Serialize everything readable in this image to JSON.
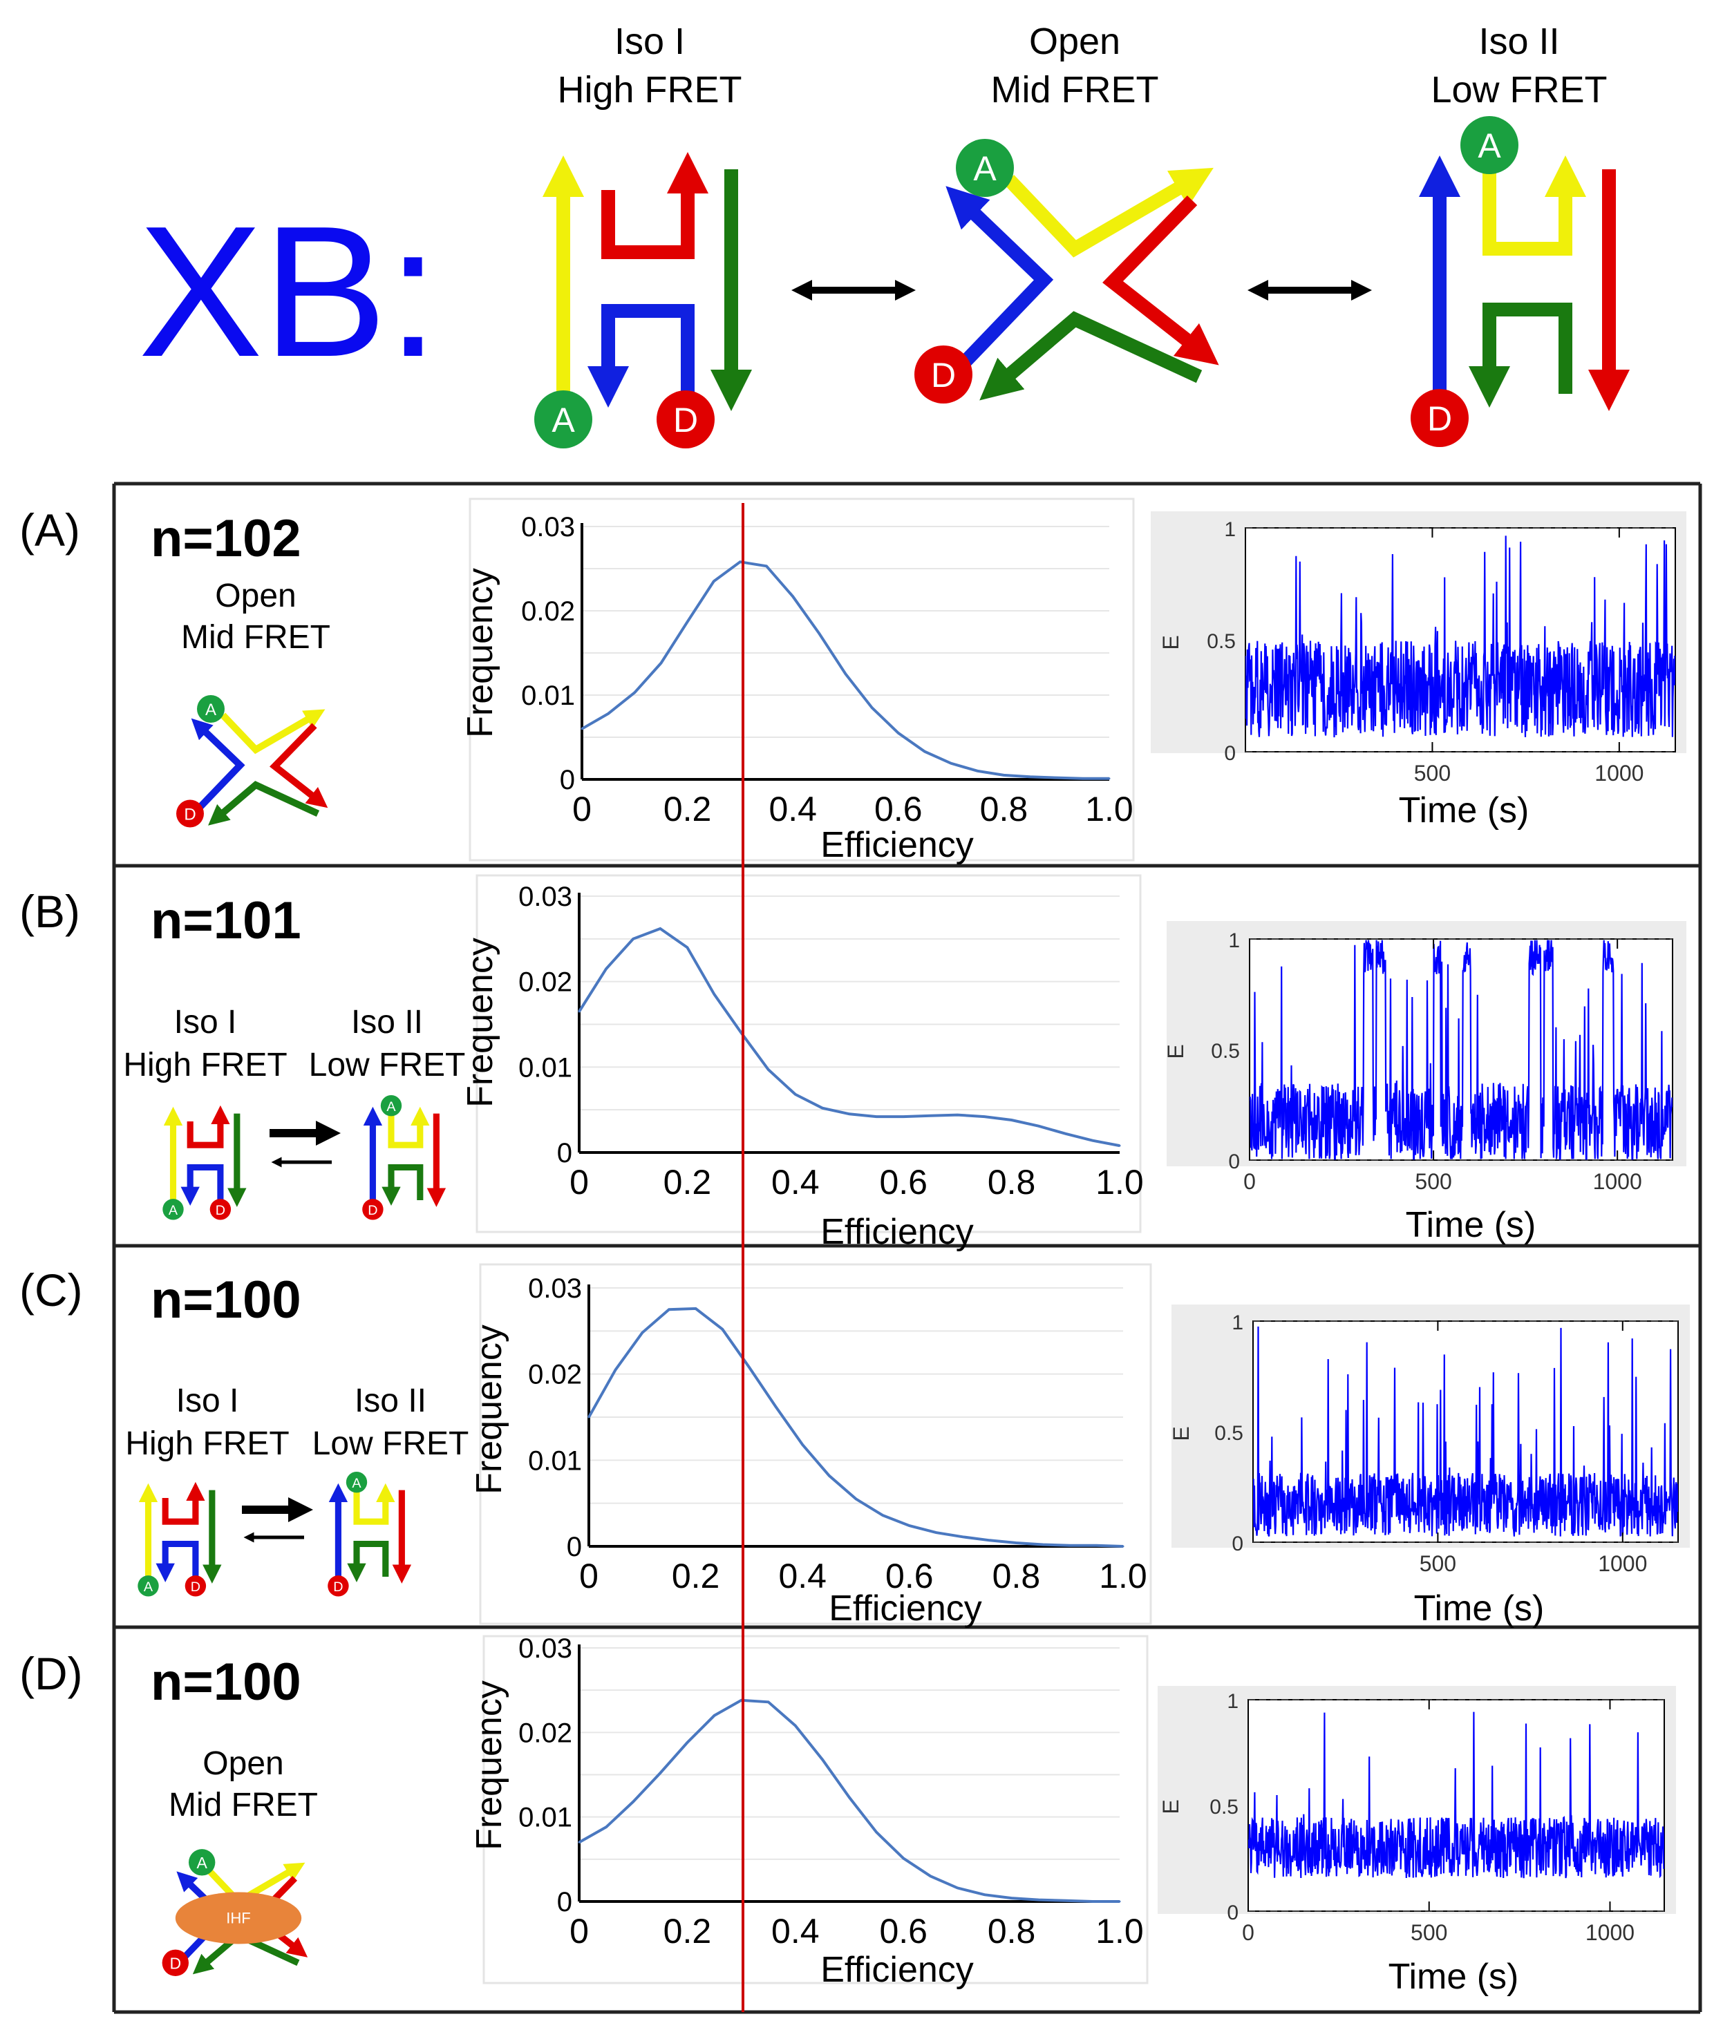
{
  "top": {
    "label": "XB:",
    "states": [
      {
        "line1": "Iso I",
        "line2": "High FRET"
      },
      {
        "line1": "Open",
        "line2": "Mid FRET"
      },
      {
        "line1": "Iso II",
        "line2": "Low FRET"
      }
    ],
    "acceptor": "A",
    "donor": "D"
  },
  "colors": {
    "xb_label": "#0a0af0",
    "strand_yellow": "#f0f00a",
    "strand_red": "#e00000",
    "strand_blue": "#1020e0",
    "strand_green": "#1a7a10",
    "acceptor_dot": "#1aa040",
    "donor_dot": "#e00000",
    "hist_line": "#4a78c0",
    "trace_line": "#0000ff",
    "ref_line": "#cc0000",
    "ihf": "#e8843a"
  },
  "reference_efficiency": 0.3,
  "rows": [
    {
      "tag": "(A)",
      "n": "n=102",
      "kind": "open",
      "captions": [
        "Open",
        "Mid FRET"
      ]
    },
    {
      "tag": "(B)",
      "n": "n=101",
      "kind": "iso",
      "captions": [
        "Iso I",
        "High FRET",
        "Iso II",
        "Low FRET"
      ]
    },
    {
      "tag": "(C)",
      "n": "n=100",
      "kind": "iso",
      "captions": [
        "Iso I",
        "High FRET",
        "Iso II",
        "Low FRET"
      ]
    },
    {
      "tag": "(D)",
      "n": "n=100",
      "kind": "ihf",
      "captions": [
        "Open",
        "Mid FRET"
      ],
      "protein": "IHF"
    }
  ],
  "chart_data": [
    {
      "panel": "A",
      "type": "line",
      "xlabel": "Efficiency",
      "ylabel": "Frequency",
      "xlim": [
        0,
        1.0
      ],
      "ylim": [
        0,
        0.03
      ],
      "xticks": [
        "0",
        "0.2",
        "0.4",
        "0.6",
        "0.8",
        "1.0"
      ],
      "yticks": [
        "0",
        "0.01",
        "0.02",
        "0.03"
      ],
      "x": [
        0,
        0.05,
        0.1,
        0.15,
        0.2,
        0.25,
        0.3,
        0.35,
        0.4,
        0.45,
        0.5,
        0.55,
        0.6,
        0.65,
        0.7,
        0.75,
        0.8,
        0.85,
        0.9,
        0.95,
        1.0
      ],
      "y": [
        0.006,
        0.0078,
        0.0103,
        0.0138,
        0.0187,
        0.0235,
        0.0258,
        0.0253,
        0.0217,
        0.0173,
        0.0125,
        0.0085,
        0.0055,
        0.0033,
        0.0019,
        0.001,
        0.0005,
        0.0003,
        0.0002,
        0.0001,
        0.0001
      ]
    },
    {
      "panel": "B",
      "type": "line",
      "xlabel": "Efficiency",
      "ylabel": "Frequency",
      "xlim": [
        0,
        1.0
      ],
      "ylim": [
        0,
        0.03
      ],
      "xticks": [
        "0",
        "0.2",
        "0.4",
        "0.6",
        "0.8",
        "1.0"
      ],
      "yticks": [
        "0",
        "0.01",
        "0.02",
        "0.03"
      ],
      "x": [
        0,
        0.05,
        0.1,
        0.15,
        0.2,
        0.25,
        0.3,
        0.35,
        0.4,
        0.45,
        0.5,
        0.55,
        0.6,
        0.65,
        0.7,
        0.75,
        0.8,
        0.85,
        0.9,
        0.95,
        1.0
      ],
      "y": [
        0.0165,
        0.0215,
        0.025,
        0.0262,
        0.024,
        0.0185,
        0.014,
        0.0097,
        0.0068,
        0.0052,
        0.0045,
        0.0042,
        0.0042,
        0.0043,
        0.0044,
        0.0042,
        0.0038,
        0.0031,
        0.0022,
        0.0014,
        0.0008
      ]
    },
    {
      "panel": "C",
      "type": "line",
      "xlabel": "Efficiency",
      "ylabel": "Frequency",
      "xlim": [
        0,
        1.0
      ],
      "ylim": [
        0,
        0.03
      ],
      "xticks": [
        "0",
        "0.2",
        "0.4",
        "0.6",
        "0.8",
        "1.0"
      ],
      "yticks": [
        "0",
        "0.01",
        "0.02",
        "0.03"
      ],
      "x": [
        0,
        0.05,
        0.1,
        0.15,
        0.2,
        0.25,
        0.3,
        0.35,
        0.4,
        0.45,
        0.5,
        0.55,
        0.6,
        0.65,
        0.7,
        0.75,
        0.8,
        0.85,
        0.9,
        0.95,
        1.0
      ],
      "y": [
        0.015,
        0.0205,
        0.0248,
        0.0275,
        0.0276,
        0.0252,
        0.0208,
        0.0162,
        0.0118,
        0.0082,
        0.0055,
        0.0036,
        0.0024,
        0.0016,
        0.0011,
        0.0007,
        0.0004,
        0.0002,
        0.0001,
        0.0001,
        0.0
      ]
    },
    {
      "panel": "D",
      "type": "line",
      "xlabel": "Efficiency",
      "ylabel": "Frequency",
      "xlim": [
        0,
        1.0
      ],
      "ylim": [
        0,
        0.03
      ],
      "xticks": [
        "0",
        "0.2",
        "0.4",
        "0.6",
        "0.8",
        "1.0"
      ],
      "yticks": [
        "0",
        "0.01",
        "0.02",
        "0.03"
      ],
      "x": [
        0,
        0.05,
        0.1,
        0.15,
        0.2,
        0.25,
        0.3,
        0.35,
        0.4,
        0.45,
        0.5,
        0.55,
        0.6,
        0.65,
        0.7,
        0.75,
        0.8,
        0.85,
        0.9,
        0.95,
        1.0
      ],
      "y": [
        0.007,
        0.0088,
        0.0118,
        0.0152,
        0.0188,
        0.022,
        0.0238,
        0.0236,
        0.0208,
        0.0168,
        0.0123,
        0.0082,
        0.0051,
        0.003,
        0.0016,
        0.0008,
        0.0004,
        0.0002,
        0.0001,
        0.0,
        0.0
      ]
    },
    {
      "panel": "A-trace",
      "type": "line",
      "xlabel": "Time (s)",
      "ylabel": "E",
      "xlim": [
        0,
        1150
      ],
      "ylim": [
        0,
        1
      ],
      "xticks": [
        "500",
        "1000"
      ],
      "yticks": [
        "0",
        "0.5",
        "1"
      ],
      "mean": 0.28,
      "spread": 0.12,
      "spike_rate": 0.06
    },
    {
      "panel": "B-trace",
      "type": "line",
      "xlabel": "Time (s)",
      "ylabel": "E",
      "xlim": [
        0,
        1150
      ],
      "ylim": [
        0,
        1
      ],
      "xticks": [
        "0",
        "500",
        "1000"
      ],
      "yticks": [
        "0",
        "0.5",
        "1"
      ],
      "mean": 0.17,
      "spread": 0.1,
      "spike_rate": 0.04,
      "high_state_intervals": [
        [
          310,
          335
        ],
        [
          345,
          370
        ],
        [
          500,
          520
        ],
        [
          580,
          600
        ],
        [
          760,
          790
        ],
        [
          800,
          825
        ],
        [
          960,
          990
        ]
      ],
      "high_level": 0.92
    },
    {
      "panel": "C-trace",
      "type": "line",
      "xlabel": "Time (s)",
      "ylabel": "E",
      "xlim": [
        0,
        1150
      ],
      "ylim": [
        0,
        1
      ],
      "xticks": [
        "500",
        "1000"
      ],
      "yticks": [
        "0",
        "0.5",
        "1"
      ],
      "mean": 0.17,
      "spread": 0.08,
      "spike_rate": 0.07
    },
    {
      "panel": "D-trace",
      "type": "line",
      "xlabel": "Time (s)",
      "ylabel": "E",
      "xlim": [
        0,
        1150
      ],
      "ylim": [
        0,
        1
      ],
      "xticks": [
        "0",
        "500",
        "1000"
      ],
      "yticks": [
        "0",
        "0.5",
        "1"
      ],
      "mean": 0.3,
      "spread": 0.08,
      "spike_rate": 0.03
    }
  ]
}
